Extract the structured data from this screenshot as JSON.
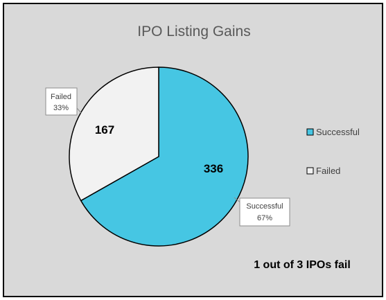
{
  "chart_data": {
    "type": "pie",
    "title": "IPO Listing Gains",
    "slices": [
      {
        "name": "Successful",
        "value": 336,
        "percent_label": "67%",
        "color": "#46C6E3"
      },
      {
        "name": "Failed",
        "value": 167,
        "percent_label": "33%",
        "color": "#F2F2F2"
      }
    ],
    "legend": {
      "placement": "right",
      "entries": [
        "Successful",
        "Failed"
      ]
    },
    "annotation": "1 out of 3 IPOs fail",
    "colors": {
      "background": "#D9D9D9",
      "border": "#000000",
      "slice_edge": "#000000"
    }
  }
}
